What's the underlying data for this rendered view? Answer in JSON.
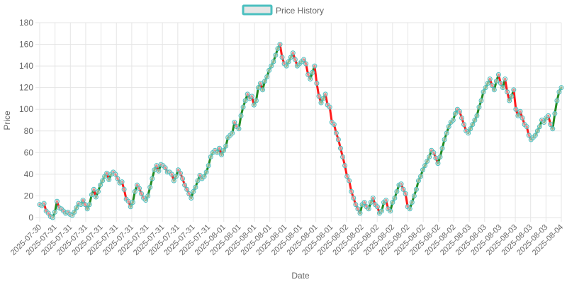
{
  "chart_data": {
    "type": "line",
    "legend_position": "top-center",
    "grid": true,
    "xlabel": "Date",
    "ylabel": "Price",
    "ylim": [
      0,
      180
    ],
    "yticks": [
      0,
      20,
      40,
      60,
      80,
      100,
      120,
      140,
      160,
      180
    ],
    "x_tick_labels": [
      "2025-07-30",
      "2025-07-31",
      "2025-07-31",
      "2025-07-31",
      "2025-07-31",
      "2025-07-31",
      "2025-07-31",
      "2025-07-31",
      "2025-07-31",
      "2025-07-31",
      "2025-07-31",
      "2025-07-31",
      "2025-08-01",
      "2025-08-01",
      "2025-08-01",
      "2025-08-01",
      "2025-08-01",
      "2025-08-01",
      "2025-08-01",
      "2025-08-01",
      "2025-08-02",
      "2025-08-02",
      "2025-08-02",
      "2025-08-02",
      "2025-08-02",
      "2025-08-02",
      "2025-08-02",
      "2025-08-02",
      "2025-08-03",
      "2025-08-03",
      "2025-08-03",
      "2025-08-03",
      "2025-08-03",
      "2025-08-03",
      "2025-08-04"
    ],
    "colors": {
      "up": "#228B22",
      "down": "#FF1A1A",
      "point_fill": "#d9d9d9",
      "point_border": "#4BC0C0",
      "legend_border": "#4BC0C0",
      "legend_fill": "#e6e6e6",
      "grid": "#e5e5e5",
      "text": "#666666"
    },
    "series": [
      {
        "name": "Price History",
        "values": [
          12,
          11,
          13,
          6,
          4,
          1,
          0,
          5,
          15,
          9,
          8,
          6,
          4,
          5,
          3,
          2,
          5,
          9,
          13,
          12,
          16,
          12,
          8,
          12,
          21,
          26,
          19,
          24,
          30,
          34,
          38,
          41,
          35,
          40,
          42,
          40,
          36,
          32,
          33,
          26,
          17,
          15,
          10,
          14,
          24,
          30,
          27,
          22,
          18,
          16,
          20,
          28,
          36,
          44,
          48,
          43,
          49,
          48,
          46,
          42,
          42,
          40,
          34,
          38,
          44,
          41,
          36,
          30,
          26,
          22,
          18,
          24,
          28,
          34,
          39,
          36,
          38,
          42,
          48,
          56,
          60,
          62,
          60,
          64,
          58,
          62,
          66,
          74,
          76,
          78,
          88,
          84,
          82,
          94,
          102,
          108,
          114,
          110,
          112,
          104,
          108,
          120,
          124,
          118,
          126,
          130,
          136,
          140,
          144,
          150,
          156,
          160,
          148,
          142,
          140,
          144,
          148,
          152,
          146,
          140,
          142,
          144,
          146,
          142,
          132,
          128,
          134,
          140,
          124,
          112,
          106,
          110,
          114,
          104,
          102,
          88,
          86,
          78,
          72,
          64,
          56,
          48,
          38,
          34,
          24,
          18,
          12,
          8,
          4,
          12,
          14,
          10,
          8,
          14,
          18,
          12,
          10,
          4,
          6,
          14,
          16,
          8,
          6,
          14,
          18,
          24,
          30,
          31,
          26,
          22,
          10,
          8,
          14,
          20,
          26,
          34,
          38,
          44,
          48,
          52,
          56,
          62,
          60,
          55,
          50,
          56,
          64,
          72,
          78,
          84,
          88,
          90,
          96,
          100,
          98,
          92,
          86,
          80,
          78,
          82,
          86,
          90,
          94,
          102,
          108,
          116,
          120,
          124,
          128,
          122,
          118,
          126,
          132,
          124,
          120,
          128,
          116,
          108,
          112,
          118,
          100,
          94,
          98,
          92,
          86,
          84,
          76,
          72,
          74,
          76,
          80,
          84,
          90,
          88,
          92,
          94,
          86,
          82,
          96,
          108,
          116,
          120
        ]
      }
    ]
  }
}
